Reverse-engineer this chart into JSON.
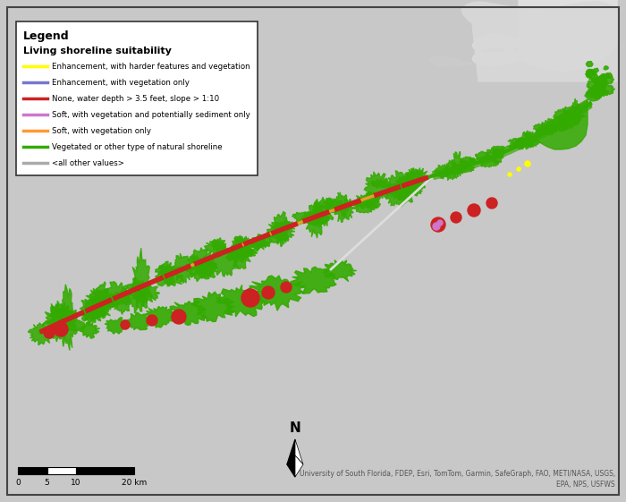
{
  "bg_color": "#c8c8c8",
  "map_bg_color": "#c8c8c8",
  "water_color": "#d8dde0",
  "land_color": "#d8d8d8",
  "border_color": "#444444",
  "legend_title": "Legend",
  "legend_subtitle": "Living shoreline suitability",
  "legend_items": [
    {
      "color": "#ffff00",
      "label": "Enhancement, with harder features and vegetation"
    },
    {
      "color": "#7777cc",
      "label": "Enhancement, with vegetation only"
    },
    {
      "color": "#cc2222",
      "label": "None, water depth > 3.5 feet, slope > 1:10"
    },
    {
      "color": "#cc77cc",
      "label": "Soft, with vegetation and potentially sediment only"
    },
    {
      "color": "#ff9933",
      "label": "Soft, with vegetation only"
    },
    {
      "color": "#33aa00",
      "label": "Vegetated or other type of natural shoreline"
    },
    {
      "color": "#aaaaaa",
      "label": "<all other values>"
    }
  ],
  "attribution": "University of South Florida, FDEP, Esri, TomTom, Garmin, SafeGraph, FAO, METI/NASA, USGS,\nEPA, NPS, USFWS",
  "scale_labels": [
    "0",
    "5",
    "10",
    "20 km"
  ],
  "north_arrow_text": "N",
  "figsize": [
    7.0,
    5.61
  ],
  "dpi": 100
}
